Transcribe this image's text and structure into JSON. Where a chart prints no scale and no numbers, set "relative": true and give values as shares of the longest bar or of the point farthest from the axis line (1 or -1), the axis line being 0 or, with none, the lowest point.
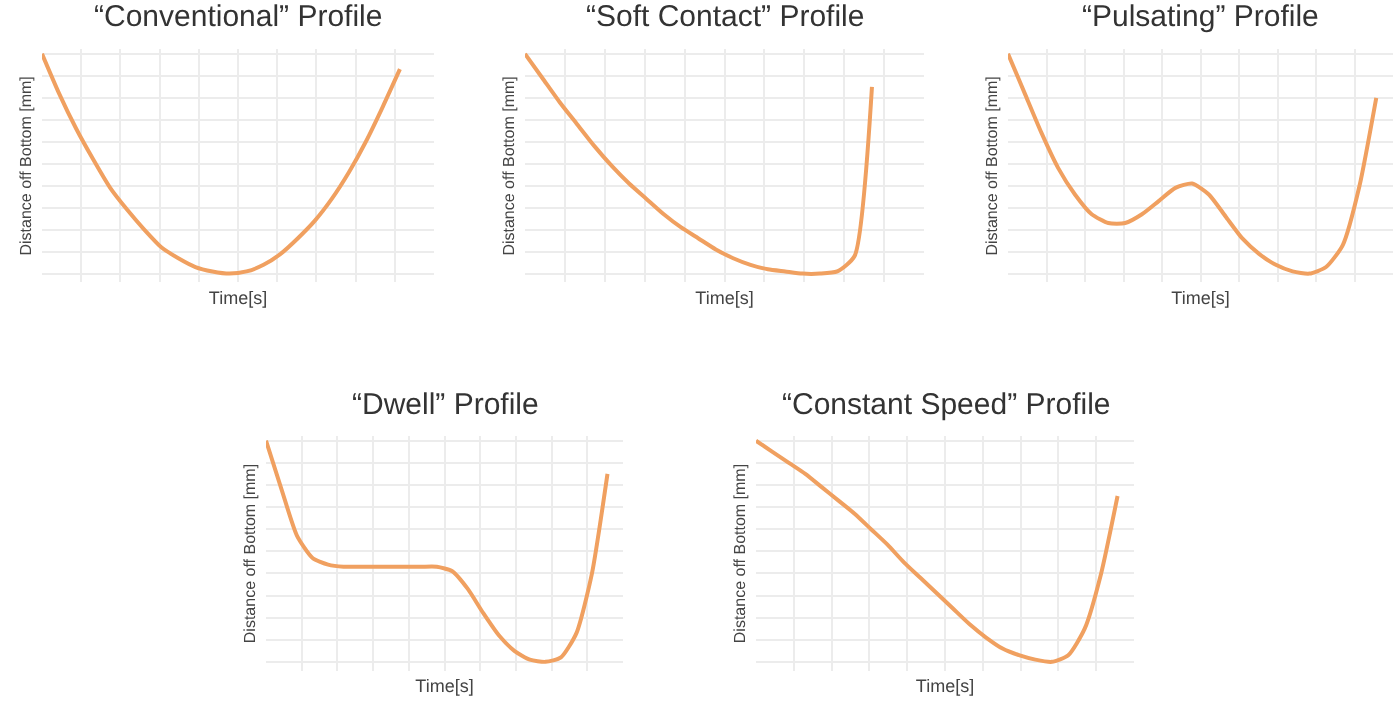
{
  "chart_data": [
    {
      "type": "line",
      "title": "“Conventional” Profile",
      "xlabel": "Time[s]",
      "ylabel": "Distance off Bottom [mm]",
      "relative": true,
      "grid": true,
      "color": "#f0a060",
      "categories": [
        null,
        null,
        null,
        null,
        null,
        null,
        null,
        null,
        null,
        null,
        null,
        null,
        null,
        null,
        null,
        null,
        null,
        null,
        null,
        null,
        null,
        null,
        null,
        null
      ],
      "values": [
        1,
        0.82,
        0.66,
        0.52,
        0.39,
        0.29,
        0.2,
        0.12,
        0.07,
        0.03,
        0.01,
        0,
        0.01,
        0.04,
        0.09,
        0.16,
        0.24,
        0.34,
        0.46,
        0.6,
        0.76,
        0.93,
        null,
        null
      ]
    },
    {
      "type": "line",
      "title": "“Soft Contact” Profile",
      "xlabel": "Time[s]",
      "ylabel": "Distance off Bottom [mm]",
      "relative": true,
      "grid": true,
      "color": "#f0a060",
      "categories": [
        null,
        null,
        null,
        null,
        null,
        null,
        null,
        null,
        null,
        null,
        null,
        null,
        null,
        null,
        null,
        null,
        null,
        null,
        null,
        null,
        null,
        null,
        null,
        null
      ],
      "values": [
        1,
        0.89,
        0.78,
        0.68,
        0.58,
        0.49,
        0.41,
        0.34,
        0.27,
        0.21,
        0.16,
        0.11,
        0.07,
        0.04,
        0.02,
        0.01,
        0,
        0,
        0.01,
        0.08,
        0.85,
        null,
        null,
        null
      ]
    },
    {
      "type": "line",
      "title": "“Pulsating” Profile",
      "xlabel": "Time[s]",
      "ylabel": "Distance off Bottom [mm]",
      "relative": true,
      "grid": true,
      "color": "#f0a060",
      "categories": [
        null,
        null,
        null,
        null,
        null,
        null,
        null,
        null,
        null,
        null,
        null,
        null,
        null,
        null,
        null,
        null,
        null,
        null,
        null,
        null,
        null,
        null,
        null,
        null
      ],
      "values": [
        1,
        0.82,
        0.64,
        0.48,
        0.36,
        0.27,
        0.23,
        0.23,
        0.27,
        0.33,
        0.39,
        0.41,
        0.36,
        0.26,
        0.16,
        0.09,
        0.04,
        0.01,
        0,
        0.03,
        0.13,
        0.4,
        0.8,
        null
      ]
    },
    {
      "type": "line",
      "title": "“Dwell” Profile",
      "xlabel": "Time[s]",
      "ylabel": "Distance off Bottom [mm]",
      "relative": true,
      "grid": true,
      "color": "#f0a060",
      "categories": [
        null,
        null,
        null,
        null,
        null,
        null,
        null,
        null,
        null,
        null,
        null,
        null,
        null,
        null,
        null,
        null,
        null,
        null,
        null,
        null,
        null,
        null,
        null,
        null
      ],
      "values": [
        1,
        0.78,
        0.57,
        0.47,
        0.44,
        0.43,
        0.43,
        0.43,
        0.43,
        0.43,
        0.43,
        0.43,
        0.41,
        0.33,
        0.22,
        0.12,
        0.05,
        0.01,
        0,
        0.02,
        0.13,
        0.4,
        0.85,
        null
      ]
    },
    {
      "type": "line",
      "title": "“Constant Speed” Profile",
      "xlabel": "Time[s]",
      "ylabel": "Distance off Bottom [mm]",
      "relative": true,
      "grid": true,
      "color": "#f0a060",
      "categories": [
        null,
        null,
        null,
        null,
        null,
        null,
        null,
        null,
        null,
        null,
        null,
        null,
        null,
        null,
        null,
        null,
        null,
        null,
        null,
        null,
        null,
        null,
        null,
        null
      ],
      "values": [
        1,
        0.95,
        0.9,
        0.85,
        0.79,
        0.73,
        0.67,
        0.6,
        0.53,
        0.45,
        0.38,
        0.31,
        0.24,
        0.17,
        0.11,
        0.06,
        0.03,
        0.01,
        0,
        0.03,
        0.15,
        0.4,
        0.75,
        null
      ]
    }
  ]
}
